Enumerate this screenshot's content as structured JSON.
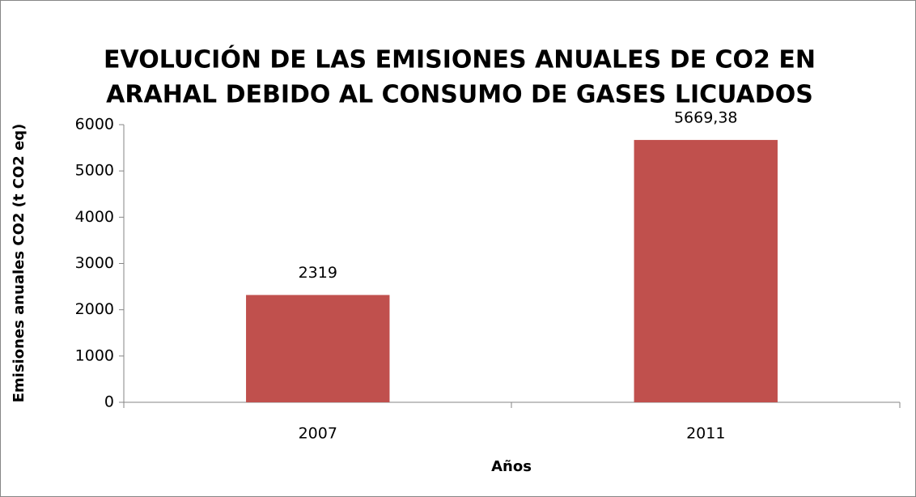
{
  "chart_data": {
    "type": "bar",
    "title": [
      "EVOLUCIÓN DE LAS EMISIONES ANUALES DE CO2 EN",
      "ARAHAL DEBIDO AL CONSUMO DE GASES LICUADOS"
    ],
    "x_label": "Años",
    "y_label": "Emisiones anuales CO2 (t CO2 eq)",
    "categories": [
      "2007",
      "2011"
    ],
    "values": [
      2319,
      5669.38
    ],
    "value_labels": [
      "2319",
      "5669,38"
    ],
    "color": "#c0504d",
    "ylim": [
      0,
      6000
    ],
    "yticks": [
      0,
      1000,
      2000,
      3000,
      4000,
      5000,
      6000
    ],
    "grid": false
  }
}
